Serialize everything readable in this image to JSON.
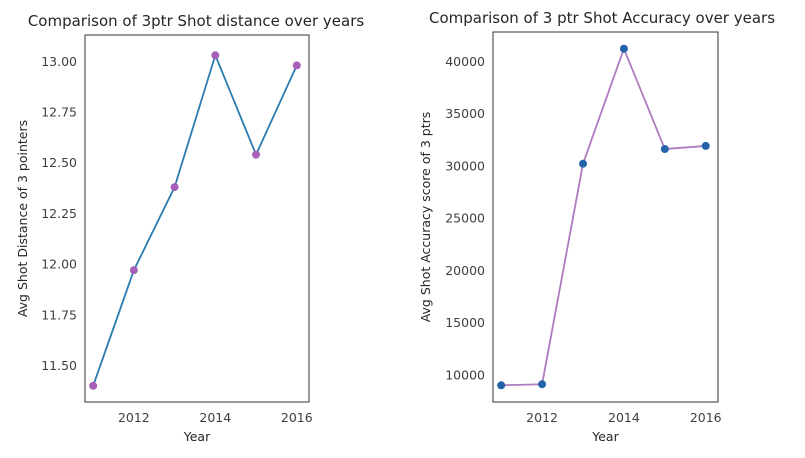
{
  "chart_data": [
    {
      "type": "line",
      "title": "Comparison of 3ptr Shot distance over years",
      "xlabel": "Year",
      "ylabel": "Avg Shot Distance of 3 pointers",
      "x": [
        2011,
        2012,
        2013,
        2014,
        2015,
        2016
      ],
      "values": [
        11.4,
        11.97,
        12.38,
        13.03,
        12.54,
        12.98
      ],
      "xlim": [
        2010.8,
        2016.3
      ],
      "ylim": [
        11.32,
        13.13
      ],
      "xticks": [
        2012,
        2014,
        2016
      ],
      "xtick_labels": [
        "2012",
        "2014",
        "2016"
      ],
      "yticks": [
        11.5,
        11.75,
        12.0,
        12.25,
        12.5,
        12.75,
        13.0
      ],
      "ytick_labels": [
        "11.50",
        "11.75",
        "12.00",
        "12.25",
        "12.50",
        "12.75",
        "13.00"
      ],
      "line_color": "#2b7bb0",
      "marker_color": "#a760b8",
      "grid": false
    },
    {
      "type": "line",
      "title": "Comparison of 3 ptr Shot Accuracy over years",
      "xlabel": "Year",
      "ylabel": "Avg Shot Accuracy score of 3 ptrs",
      "x": [
        2011,
        2012,
        2013,
        2014,
        2015,
        2016
      ],
      "values": [
        9000,
        9100,
        30200,
        41200,
        31600,
        31900
      ],
      "xlim": [
        2010.8,
        2016.3
      ],
      "ylim": [
        7400,
        42800
      ],
      "xticks": [
        2012,
        2014,
        2016
      ],
      "xtick_labels": [
        "2012",
        "2014",
        "2016"
      ],
      "yticks": [
        10000,
        15000,
        20000,
        25000,
        30000,
        35000,
        40000
      ],
      "ytick_labels": [
        "10000",
        "15000",
        "20000",
        "25000",
        "30000",
        "35000",
        "40000"
      ],
      "line_color": "#b07ac0",
      "marker_color": "#2563a8",
      "grid": false
    }
  ]
}
